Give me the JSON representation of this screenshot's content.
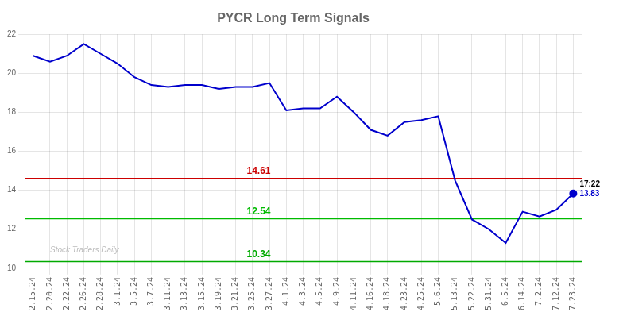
{
  "chart_data": {
    "type": "line",
    "title": "PYCR Long Term Signals",
    "categories": [
      "2.15.24",
      "2.20.24",
      "2.22.24",
      "2.26.24",
      "2.28.24",
      "3.1.24",
      "3.5.24",
      "3.7.24",
      "3.11.24",
      "3.13.24",
      "3.15.24",
      "3.19.24",
      "3.21.24",
      "3.25.24",
      "3.27.24",
      "4.1.24",
      "4.3.24",
      "4.5.24",
      "4.9.24",
      "4.11.24",
      "4.16.24",
      "4.18.24",
      "4.23.24",
      "4.25.24",
      "5.6.24",
      "5.13.24",
      "5.22.24",
      "5.31.24",
      "6.5.24",
      "6.14.24",
      "7.2.24",
      "7.12.24",
      "7.23.24"
    ],
    "values": [
      20.9,
      20.6,
      20.9,
      21.5,
      21.0,
      20.5,
      19.8,
      19.4,
      19.3,
      19.4,
      19.4,
      19.2,
      19.3,
      19.3,
      19.5,
      18.1,
      18.2,
      18.2,
      18.8,
      18.0,
      17.1,
      16.8,
      17.5,
      17.6,
      17.8,
      14.5,
      12.5,
      12.0,
      11.3,
      12.9,
      12.65,
      13.0,
      13.83
    ],
    "color": "#0000cc",
    "ylim": [
      10,
      22
    ],
    "yticks": [
      10,
      12,
      14,
      16,
      18,
      20,
      22
    ],
    "grid": true,
    "reference_lines": [
      {
        "value": 14.61,
        "label": "14.61",
        "color": "#cc0000"
      },
      {
        "value": 12.54,
        "label": "12.54",
        "color": "#00bb00"
      },
      {
        "value": 10.34,
        "label": "10.34",
        "color": "#00aa00"
      }
    ],
    "annotations": [
      "17:22",
      "13.83"
    ],
    "watermark": "Stock Traders Daily"
  }
}
